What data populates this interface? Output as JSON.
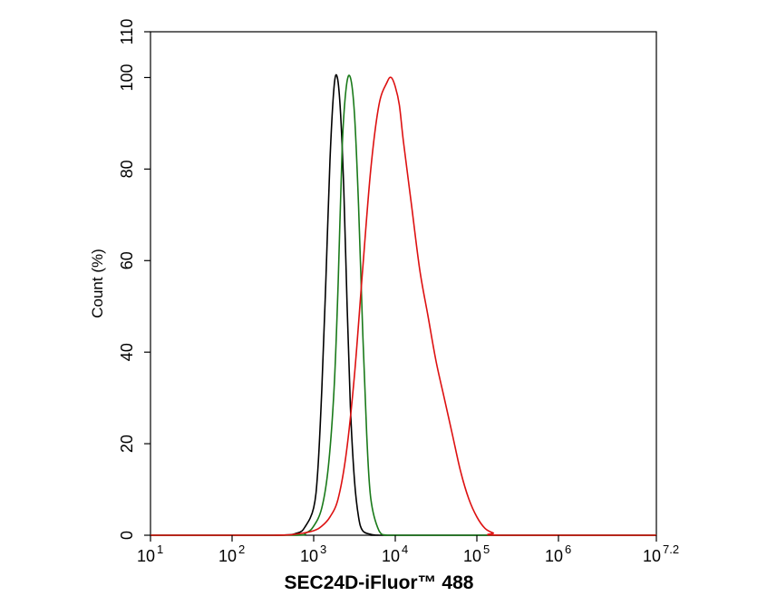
{
  "chart_data": {
    "type": "line",
    "xlabel": "SEC24D-iFluor™ 488",
    "ylabel": "Count  (%)",
    "x_scale": "log10",
    "xlim": [
      1,
      7.2
    ],
    "ylim": [
      0,
      110
    ],
    "x_ticks": [
      {
        "base": "10",
        "exp": "1",
        "pos": 1
      },
      {
        "base": "10",
        "exp": "2",
        "pos": 2
      },
      {
        "base": "10",
        "exp": "3",
        "pos": 3
      },
      {
        "base": "10",
        "exp": "4",
        "pos": 4
      },
      {
        "base": "10",
        "exp": "5",
        "pos": 5
      },
      {
        "base": "10",
        "exp": "6",
        "pos": 6
      },
      {
        "base": "10",
        "exp": "7.2",
        "pos": 7.2
      }
    ],
    "y_ticks": [
      {
        "label": "0",
        "value": 0
      },
      {
        "label": "20",
        "value": 20
      },
      {
        "label": "40",
        "value": 40
      },
      {
        "label": "60",
        "value": 60
      },
      {
        "label": "80",
        "value": 80
      },
      {
        "label": "100",
        "value": 100
      },
      {
        "label": "110",
        "value": 110
      }
    ],
    "grid": false,
    "series": [
      {
        "color": "#000000",
        "x": [
          1.0,
          2.5,
          2.8,
          2.9,
          3.0,
          3.05,
          3.1,
          3.15,
          3.2,
          3.25,
          3.29,
          3.33,
          3.37,
          3.41,
          3.45,
          3.5,
          3.55,
          3.6,
          3.7,
          3.8,
          4.0,
          7.2
        ],
        "y": [
          0,
          0,
          0.5,
          2,
          6,
          14,
          32,
          56,
          82,
          98,
          100,
          92,
          75,
          50,
          28,
          12,
          4,
          1,
          0.2,
          0,
          0,
          0
        ]
      },
      {
        "color": "#1a7a1a",
        "x": [
          1.0,
          2.7,
          2.9,
          3.0,
          3.1,
          3.18,
          3.25,
          3.3,
          3.35,
          3.4,
          3.45,
          3.5,
          3.55,
          3.6,
          3.65,
          3.7,
          3.8,
          3.9,
          4.2,
          7.2
        ],
        "y": [
          0,
          0,
          0.5,
          2,
          6,
          15,
          32,
          55,
          85,
          98,
          100,
          92,
          72,
          45,
          22,
          8,
          1,
          0,
          0,
          0
        ]
      },
      {
        "color": "#dd1111",
        "x": [
          1.0,
          2.5,
          2.8,
          3.0,
          3.1,
          3.2,
          3.3,
          3.4,
          3.5,
          3.6,
          3.7,
          3.8,
          3.9,
          3.95,
          4.0,
          4.05,
          4.1,
          4.2,
          4.3,
          4.4,
          4.5,
          4.6,
          4.7,
          4.8,
          4.9,
          5.0,
          5.1,
          5.2,
          5.3,
          7.2
        ],
        "y": [
          0,
          0,
          0.3,
          1,
          2,
          4,
          8,
          18,
          35,
          58,
          80,
          94,
          99,
          100,
          98,
          94,
          86,
          72,
          58,
          48,
          38,
          30,
          22,
          14,
          8,
          4,
          1.5,
          0.5,
          0,
          0
        ]
      }
    ]
  }
}
